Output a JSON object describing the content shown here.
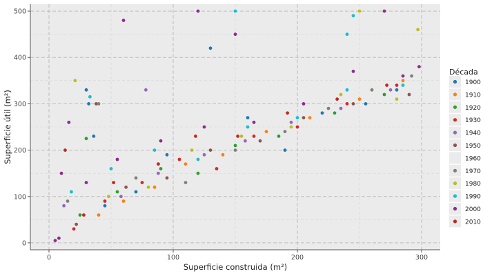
{
  "chart_data": {
    "type": "scatter",
    "title": "",
    "xlabel": "Superficie construida (m²)",
    "ylabel": "Superficie útil (m²)",
    "xlim": [
      -15,
      315
    ],
    "ylim": [
      -15,
      515
    ],
    "x_ticks": [
      0,
      100,
      200,
      300
    ],
    "y_ticks": [
      0,
      100,
      200,
      300,
      400,
      500
    ],
    "grid": true,
    "grid_style": "dashed",
    "legend_position": "right",
    "legend_title": "Década",
    "series": [
      {
        "name": "1900",
        "color": "#1F77B4",
        "points": [
          [
            30,
            330
          ],
          [
            32,
            300
          ],
          [
            36,
            230
          ],
          [
            45,
            80
          ],
          [
            70,
            110
          ],
          [
            95,
            190
          ],
          [
            130,
            420
          ],
          [
            160,
            270
          ],
          [
            190,
            200
          ],
          [
            220,
            280
          ],
          [
            255,
            300
          ],
          [
            280,
            330
          ]
        ]
      },
      {
        "name": "1910",
        "color": "#FF7F0E",
        "points": [
          [
            40,
            60
          ],
          [
            60,
            90
          ],
          [
            85,
            120
          ],
          [
            110,
            170
          ],
          [
            140,
            190
          ],
          [
            175,
            240
          ],
          [
            210,
            270
          ],
          [
            250,
            310
          ],
          [
            285,
            350
          ]
        ]
      },
      {
        "name": "1920",
        "color": "#2CA02C",
        "points": [
          [
            30,
            225
          ],
          [
            25,
            60
          ],
          [
            55,
            110
          ],
          [
            90,
            160
          ],
          [
            120,
            150
          ],
          [
            150,
            210
          ],
          [
            185,
            230
          ],
          [
            230,
            280
          ],
          [
            270,
            320
          ]
        ]
      },
      {
        "name": "1930",
        "color": "#D62728",
        "points": [
          [
            20,
            30
          ],
          [
            45,
            90
          ],
          [
            75,
            130
          ],
          [
            105,
            180
          ],
          [
            135,
            160
          ],
          [
            165,
            230
          ],
          [
            200,
            250
          ],
          [
            240,
            300
          ],
          [
            280,
            340
          ]
        ]
      },
      {
        "name": "1940",
        "color": "#9467BD",
        "points": [
          [
            12,
            80
          ],
          [
            78,
            330
          ],
          [
            58,
            100
          ],
          [
            88,
            150
          ],
          [
            125,
            190
          ],
          [
            158,
            220
          ],
          [
            195,
            260
          ],
          [
            235,
            290
          ],
          [
            275,
            330
          ]
        ]
      },
      {
        "name": "1950",
        "color": "#8C564B",
        "points": [
          [
            38,
            300
          ],
          [
            22,
            40
          ],
          [
            62,
            120
          ],
          [
            95,
            140
          ],
          [
            130,
            200
          ],
          [
            170,
            220
          ],
          [
            205,
            270
          ],
          [
            245,
            300
          ],
          [
            290,
            320
          ]
        ]
      },
      {
        "name": "1960",
        "color": "#E0F0F8",
        "points": [
          [
            205,
            420
          ],
          [
            35,
            70
          ],
          [
            65,
            110
          ],
          [
            100,
            150
          ],
          [
            140,
            170
          ],
          [
            175,
            230
          ],
          [
            215,
            260
          ],
          [
            255,
            320
          ],
          [
            295,
            330
          ]
        ]
      },
      {
        "name": "1970",
        "color": "#7F7F7F",
        "points": [
          [
            15,
            90
          ],
          [
            40,
            300
          ],
          [
            70,
            140
          ],
          [
            110,
            130
          ],
          [
            150,
            200
          ],
          [
            190,
            240
          ],
          [
            225,
            290
          ],
          [
            260,
            330
          ],
          [
            292,
            360
          ]
        ]
      },
      {
        "name": "1980",
        "color": "#BCBD22",
        "points": [
          [
            21,
            350
          ],
          [
            250,
            500
          ],
          [
            48,
            100
          ],
          [
            80,
            120
          ],
          [
            115,
            200
          ],
          [
            155,
            230
          ],
          [
            195,
            250
          ],
          [
            235,
            320
          ],
          [
            280,
            310
          ],
          [
            297,
            460
          ]
        ]
      },
      {
        "name": "1990",
        "color": "#17BECF",
        "points": [
          [
            33,
            315
          ],
          [
            150,
            500
          ],
          [
            245,
            490
          ],
          [
            240,
            450
          ],
          [
            18,
            110
          ],
          [
            50,
            160
          ],
          [
            85,
            200
          ],
          [
            120,
            180
          ],
          [
            160,
            250
          ],
          [
            200,
            270
          ],
          [
            240,
            330
          ],
          [
            285,
            340
          ]
        ]
      },
      {
        "name": "2000",
        "color": "#8B2B8E",
        "points": [
          [
            5,
            5
          ],
          [
            8,
            10
          ],
          [
            60,
            480
          ],
          [
            120,
            500
          ],
          [
            270,
            500
          ],
          [
            150,
            450
          ],
          [
            10,
            150
          ],
          [
            16,
            260
          ],
          [
            30,
            130
          ],
          [
            55,
            180
          ],
          [
            90,
            220
          ],
          [
            125,
            250
          ],
          [
            165,
            260
          ],
          [
            205,
            300
          ],
          [
            245,
            370
          ],
          [
            285,
            360
          ],
          [
            298,
            380
          ]
        ]
      },
      {
        "name": "2010",
        "color": "#C0281E",
        "points": [
          [
            13,
            200
          ],
          [
            28,
            60
          ],
          [
            52,
            130
          ],
          [
            88,
            170
          ],
          [
            118,
            230
          ],
          [
            152,
            230
          ],
          [
            192,
            280
          ],
          [
            232,
            310
          ],
          [
            272,
            340
          ]
        ]
      }
    ]
  }
}
